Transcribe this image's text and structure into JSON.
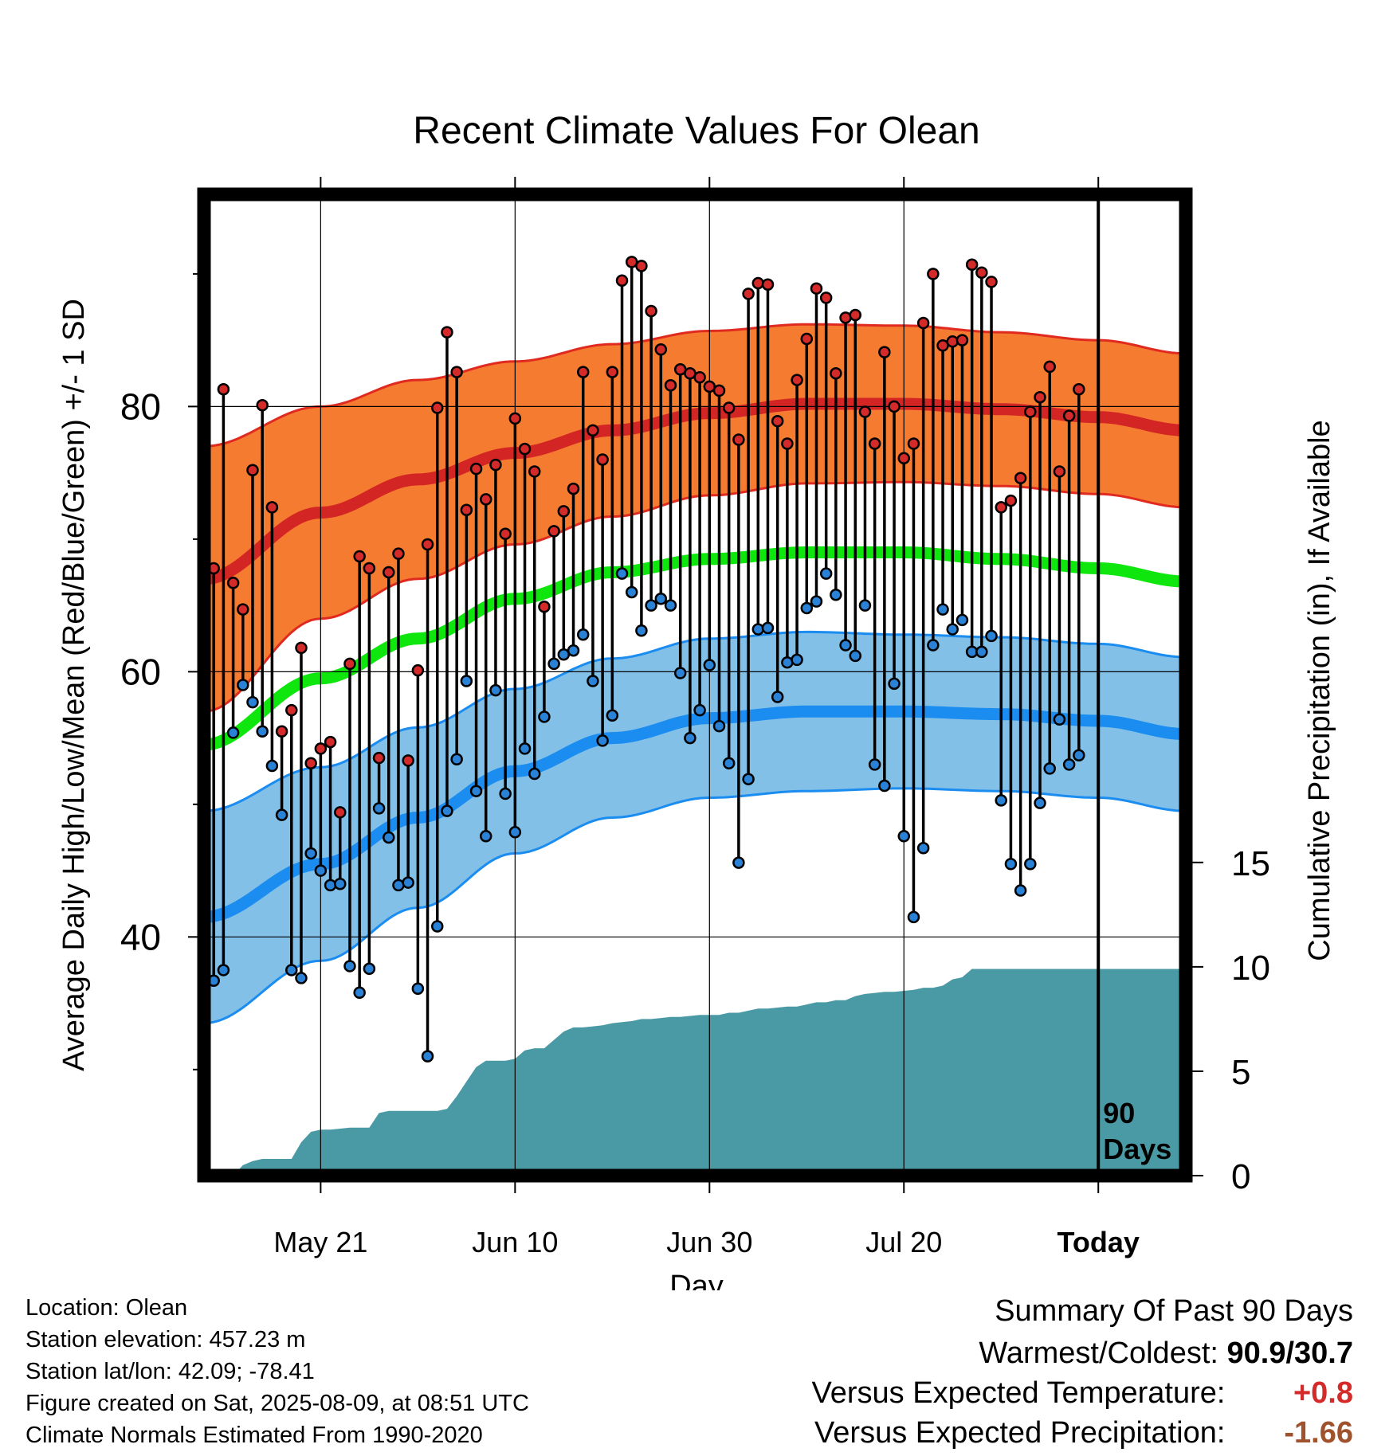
{
  "chart_data": {
    "type": "line",
    "title": "Recent Climate Values For Olean",
    "xlabel": "Day",
    "ylabel": "Average Daily High/Low/Mean (Red/Blue/Green) +/- 1 SD",
    "y2label": "Cumulative Precipitation (in), If Available",
    "ylim": [
      22,
      96
    ],
    "y2lim": [
      0,
      47
    ],
    "x_range_days_rel_today": [
      -92,
      9
    ],
    "x_ticks": [
      {
        "label": "May 21",
        "day": -80
      },
      {
        "label": "Jun 10",
        "day": -60
      },
      {
        "label": "Jun 30",
        "day": -40
      },
      {
        "label": "Jul 20",
        "day": -20
      },
      {
        "label": "Today",
        "day": 0
      }
    ],
    "y_ticks": [
      40,
      60,
      80
    ],
    "y2_ticks": [
      0,
      5,
      10,
      15
    ],
    "today_marker_label": [
      "90",
      "Days"
    ],
    "normals": {
      "days": [
        -92,
        -80,
        -70,
        -60,
        -50,
        -40,
        -30,
        -20,
        -10,
        0,
        9
      ],
      "high_mean": [
        67,
        72,
        74.5,
        76.5,
        78.2,
        79.5,
        80.2,
        80.2,
        79.8,
        79.2,
        78.2
      ],
      "high_sd": [
        10,
        8,
        7.5,
        6.9,
        6.5,
        6.2,
        6,
        5.9,
        5.8,
        5.8,
        5.8
      ],
      "low_mean": [
        41.5,
        45.5,
        49,
        52.5,
        55,
        56.5,
        57,
        57,
        56.8,
        56.3,
        55.3
      ],
      "low_sd": [
        8,
        7.3,
        6.8,
        6.2,
        6,
        6,
        6,
        5.8,
        5.8,
        5.8,
        5.8
      ],
      "avg_mean": [
        54.5,
        59.5,
        62.5,
        65.5,
        67.5,
        68.5,
        69,
        69,
        68.5,
        67.8,
        66.8
      ]
    },
    "series": [
      {
        "name": "Daily High",
        "days": [
          -91,
          -90,
          -89,
          -88,
          -87,
          -86,
          -85,
          -84,
          -83,
          -82,
          -81,
          -80,
          -79,
          -78,
          -77,
          -76,
          -75,
          -74,
          -73,
          -72,
          -71,
          -70,
          -69,
          -68,
          -67,
          -66,
          -65,
          -64,
          -63,
          -62,
          -61,
          -60,
          -59,
          -58,
          -57,
          -56,
          -55,
          -54,
          -53,
          -52,
          -51,
          -50,
          -49,
          -48,
          -47,
          -46,
          -45,
          -44,
          -43,
          -42,
          -41,
          -40,
          -39,
          -38,
          -37,
          -36,
          -35,
          -34,
          -33,
          -32,
          -31,
          -30,
          -29,
          -28,
          -27,
          -26,
          -25,
          -24,
          -23,
          -22,
          -21,
          -20,
          -19,
          -18,
          -17,
          -16,
          -15,
          -14,
          -13,
          -12,
          -11,
          -10,
          -9,
          -8,
          -7,
          -6,
          -5,
          -4,
          -3,
          -2
        ],
        "values": [
          67.8,
          81.3,
          66.7,
          64.7,
          75.2,
          80.1,
          72.4,
          55.5,
          57.1,
          61.8,
          53.1,
          54.2,
          54.7,
          49.4,
          60.6,
          68.7,
          67.8,
          53.5,
          67.5,
          68.9,
          53.3,
          60.1,
          69.6,
          79.9,
          85.6,
          82.6,
          72.2,
          75.3,
          73.0,
          75.6,
          70.4,
          79.1,
          76.8,
          75.1,
          64.9,
          70.6,
          72.1,
          73.8,
          82.6,
          78.2,
          76.0,
          82.6,
          89.5,
          90.9,
          90.6,
          87.2,
          84.3,
          81.6,
          82.8,
          82.5,
          82.2,
          81.5,
          81.2,
          79.9,
          77.5,
          88.5,
          89.3,
          89.2,
          78.9,
          77.2,
          82.0,
          85.1,
          88.9,
          88.2,
          82.5,
          86.7,
          86.9,
          79.6,
          77.2,
          84.1,
          80.0,
          76.1,
          77.2,
          86.3,
          90.0,
          84.6,
          84.9,
          85.0,
          90.7,
          90.1,
          89.4,
          72.4,
          72.9,
          74.6,
          79.6,
          80.7,
          83.0,
          75.1,
          79.3,
          81.3
        ]
      },
      {
        "name": "Daily Low",
        "days": [
          -91,
          -90,
          -89,
          -88,
          -87,
          -86,
          -85,
          -84,
          -83,
          -82,
          -81,
          -80,
          -79,
          -78,
          -77,
          -76,
          -75,
          -74,
          -73,
          -72,
          -71,
          -70,
          -69,
          -68,
          -67,
          -66,
          -65,
          -64,
          -63,
          -62,
          -61,
          -60,
          -59,
          -58,
          -57,
          -56,
          -55,
          -54,
          -53,
          -52,
          -51,
          -50,
          -49,
          -48,
          -47,
          -46,
          -45,
          -44,
          -43,
          -42,
          -41,
          -40,
          -39,
          -38,
          -37,
          -36,
          -35,
          -34,
          -33,
          -32,
          -31,
          -30,
          -29,
          -28,
          -27,
          -26,
          -25,
          -24,
          -23,
          -22,
          -21,
          -20,
          -19,
          -18,
          -17,
          -16,
          -15,
          -14,
          -13,
          -12,
          -11,
          -10,
          -9,
          -8,
          -7,
          -6,
          -5,
          -4,
          -3,
          -2
        ],
        "values": [
          36.7,
          37.5,
          55.4,
          59.0,
          57.7,
          55.5,
          52.9,
          49.2,
          37.5,
          36.9,
          46.3,
          45.0,
          43.9,
          44.0,
          37.8,
          35.8,
          37.6,
          49.7,
          47.5,
          43.9,
          44.1,
          36.1,
          31.0,
          40.8,
          49.5,
          53.4,
          59.3,
          51.0,
          47.6,
          58.6,
          50.8,
          47.9,
          54.2,
          52.3,
          56.6,
          60.6,
          61.3,
          61.6,
          62.8,
          59.3,
          54.8,
          56.7,
          67.4,
          66.0,
          63.1,
          65.0,
          65.5,
          65.0,
          59.9,
          55.0,
          57.1,
          60.5,
          55.9,
          53.1,
          45.6,
          51.9,
          63.2,
          63.3,
          58.1,
          60.7,
          60.9,
          64.8,
          65.3,
          67.4,
          65.8,
          62.0,
          61.2,
          65.0,
          53.0,
          51.4,
          59.1,
          47.6,
          41.5,
          46.7,
          62.0,
          64.7,
          63.2,
          63.9,
          61.5,
          61.5,
          62.7,
          50.3,
          45.5,
          43.5,
          45.5,
          50.1,
          52.7,
          56.4,
          53.0,
          53.7
        ]
      },
      {
        "name": "Cumulative Precipitation",
        "days": [
          -89,
          -88,
          -87,
          -86,
          -85,
          -84,
          -83,
          -82,
          -81,
          -80,
          -79,
          -78,
          -77,
          -76,
          -75,
          -74,
          -73,
          -72,
          -71,
          -70,
          -69,
          -68,
          -67,
          -66,
          -65,
          -64,
          -63,
          -62,
          -61,
          -60,
          -59,
          -58,
          -57,
          -56,
          -55,
          -54,
          -53,
          -52,
          -51,
          -50,
          -49,
          -48,
          -47,
          -46,
          -45,
          -44,
          -43,
          -42,
          -41,
          -40,
          -39,
          -38,
          -37,
          -36,
          -35,
          -34,
          -33,
          -32,
          -31,
          -30,
          -29,
          -28,
          -27,
          -26,
          -25,
          -24,
          -23,
          -22,
          -21,
          -20,
          -19,
          -18,
          -17,
          -16,
          -15,
          -14,
          -13,
          -12,
          -11,
          -10,
          -9,
          -8,
          -7,
          -6,
          -5,
          -4,
          -3,
          -2,
          -1,
          0,
          9
        ],
        "values": [
          0,
          0.5,
          0.7,
          0.8,
          0.8,
          0.8,
          0.8,
          1.6,
          2.1,
          2.2,
          2.2,
          2.25,
          2.3,
          2.3,
          2.3,
          3.0,
          3.1,
          3.1,
          3.1,
          3.1,
          3.1,
          3.1,
          3.2,
          3.8,
          4.5,
          5.2,
          5.5,
          5.5,
          5.5,
          5.6,
          6.0,
          6.1,
          6.1,
          6.5,
          6.9,
          7.1,
          7.1,
          7.15,
          7.2,
          7.3,
          7.35,
          7.4,
          7.5,
          7.5,
          7.55,
          7.6,
          7.6,
          7.65,
          7.7,
          7.7,
          7.7,
          7.8,
          7.8,
          7.9,
          8.0,
          8.0,
          8.05,
          8.1,
          8.1,
          8.2,
          8.3,
          8.3,
          8.4,
          8.4,
          8.6,
          8.7,
          8.75,
          8.8,
          8.8,
          8.85,
          8.9,
          9.0,
          9.0,
          9.1,
          9.4,
          9.5,
          9.9,
          9.9,
          9.9,
          9.9,
          9.9,
          9.9,
          9.9,
          9.9,
          9.9,
          9.9,
          9.9,
          9.9,
          9.9,
          9.9,
          9.9
        ]
      }
    ],
    "colors": {
      "high_band": "#f47b30",
      "high_edge": "#e02a20",
      "high_mean": "#d42525",
      "low_band": "#82c0e8",
      "low_edge": "#1b8cf0",
      "low_mean": "#1b8cf0",
      "avg_mean": "#0ee60e",
      "precip": "#4a9aa5",
      "high_marker": "#d42a2a",
      "low_marker": "#2a82d6"
    }
  },
  "info": {
    "location": "Location: Olean",
    "elevation": "Station elevation: 457.23 m",
    "latlon": "Station lat/lon: 42.09; -78.41",
    "created": "Figure created on Sat, 2025-08-09, at 08:51 UTC",
    "normals": "Climate Normals Estimated From 1990-2020"
  },
  "summary": {
    "title": "Summary Of Past 90 Days",
    "warmest_label": "Warmest/Coldest:",
    "warmest_value": "90.9/30.7",
    "temp_label": "Versus Expected Temperature:",
    "temp_value": "+0.8",
    "temp_color": "#d42a2a",
    "precip_label": "Versus Expected Precipitation:",
    "precip_value": "-1.66",
    "precip_color": "#a0522d"
  }
}
